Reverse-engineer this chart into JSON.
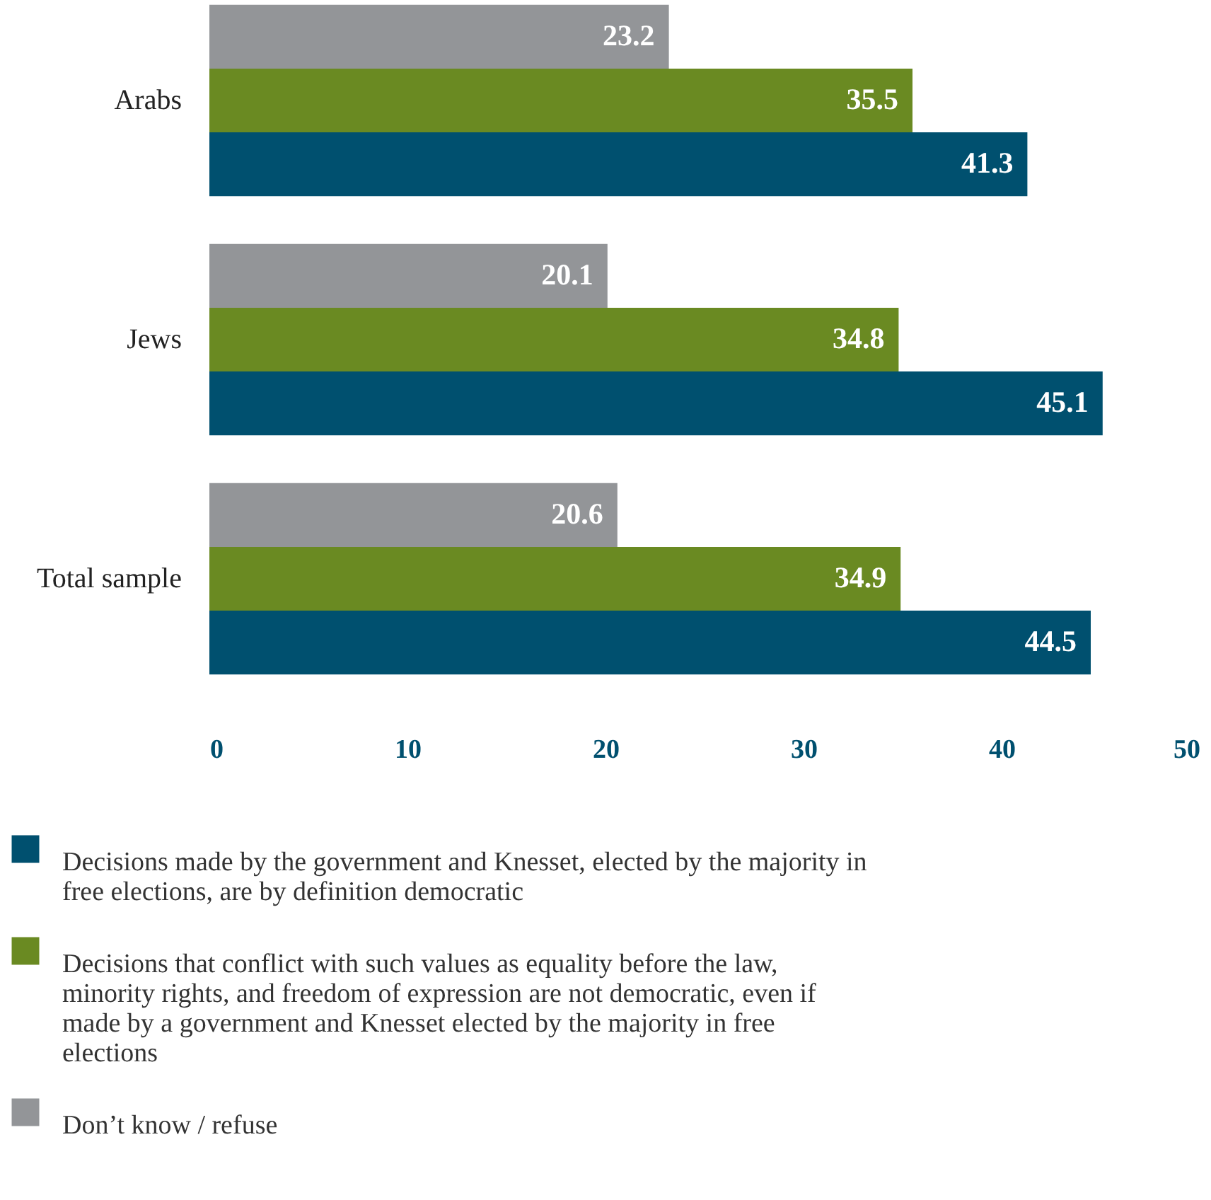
{
  "chart_data": {
    "type": "bar",
    "orientation": "horizontal",
    "categories": [
      "Arabs",
      "Jews",
      "Total sample"
    ],
    "series": [
      {
        "name": "Decisions made by the government and Knesset, elected by the majority in free elections, are by definition democratic",
        "color": "#00506f",
        "values": [
          41.3,
          45.1,
          44.5
        ]
      },
      {
        "name": "Decisions that conflict with such values as equality before the law, minority rights, and freedom of expression are not democratic, even if made by a government and Knesset elected by the majority in free elections",
        "color": "#6a8a22",
        "values": [
          35.5,
          34.8,
          34.9
        ]
      },
      {
        "name": "Don’t know / refuse",
        "color": "#939598",
        "values": [
          23.2,
          20.1,
          20.6
        ]
      }
    ],
    "xlim": [
      0,
      50
    ],
    "xticks": [
      0,
      10,
      20,
      30,
      40,
      50
    ],
    "data_labels": true,
    "grid": false,
    "legend": "bottom"
  }
}
